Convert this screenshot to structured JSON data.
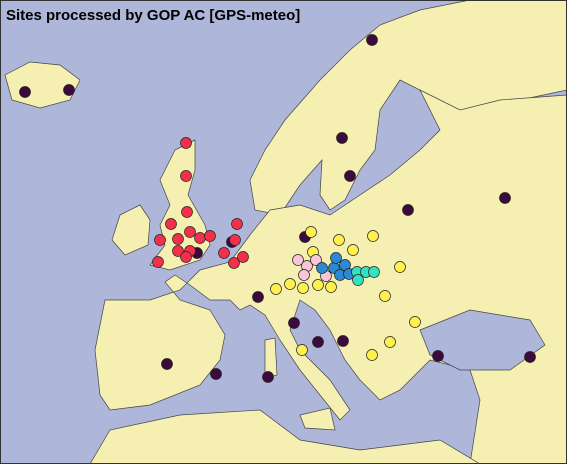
{
  "header": {
    "title": "Sites processed by GOP AC [GPS-meteo]"
  }
}
